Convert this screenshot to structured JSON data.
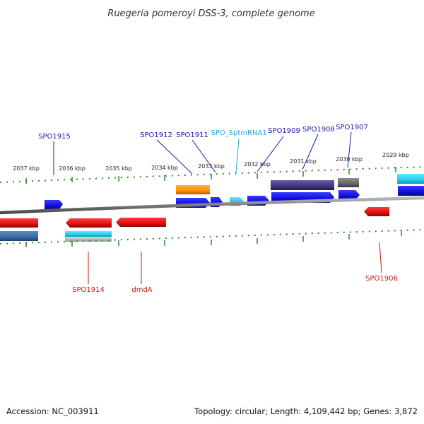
{
  "title": "Ruegeria pomeroyi DSS-3, complete genome",
  "footer": {
    "accession": "Accession: NC_003911",
    "summary": "Topology: circular; Length: 4,109,442 bp; Genes: 3,872"
  },
  "scale": {
    "ticks": [
      "2037 kbp",
      "2036 kbp",
      "2035 kbp",
      "2034 kbp",
      "2033 kbp",
      "2032 kbp",
      "2031 kbp",
      "2030 kbp",
      "2029 kbp"
    ]
  },
  "colors": {
    "backbone": "#8a8a8a",
    "tick": "#2e8b2e",
    "forward_gene": "#1010e0",
    "reverse_gene": "#e01010",
    "rna": "#33c0e8",
    "label_forward": "#1a1aa8",
    "label_reverse": "#c41a1a",
    "label_rna": "#2aa8d8"
  },
  "labels": {
    "top": [
      "SPO1915",
      "SPO1912",
      "SPO1911",
      "SPO_SptmRNA1",
      "SPO1909",
      "SPO1908",
      "SPO1907"
    ],
    "bottom": [
      "SPO1914",
      "dmdA",
      "SPO1906"
    ]
  }
}
